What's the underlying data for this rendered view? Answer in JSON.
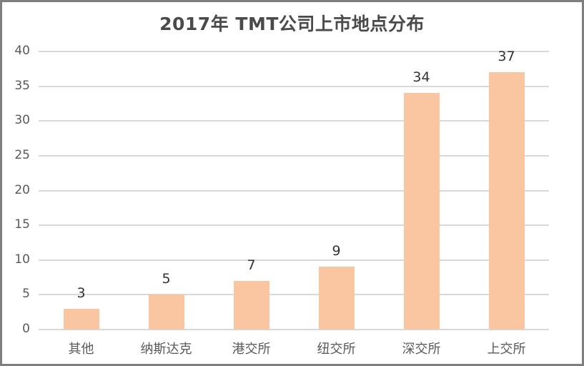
{
  "chart_data": {
    "type": "bar",
    "title": "2017年 TMT公司上市地点分布",
    "categories": [
      "其他",
      "纳斯达克",
      "港交所",
      "纽交所",
      "深交所",
      "上交所"
    ],
    "values": [
      3,
      5,
      7,
      9,
      34,
      37
    ],
    "data_labels": [
      "3",
      "5",
      "7",
      "9",
      "34",
      "37"
    ],
    "xlabel": "",
    "ylabel": "",
    "ylim": [
      0,
      40
    ],
    "yticks": [
      "0",
      "5",
      "10",
      "15",
      "20",
      "25",
      "30",
      "35",
      "40"
    ],
    "grid": true,
    "legend": null,
    "bar_color": "#fac6a2"
  }
}
